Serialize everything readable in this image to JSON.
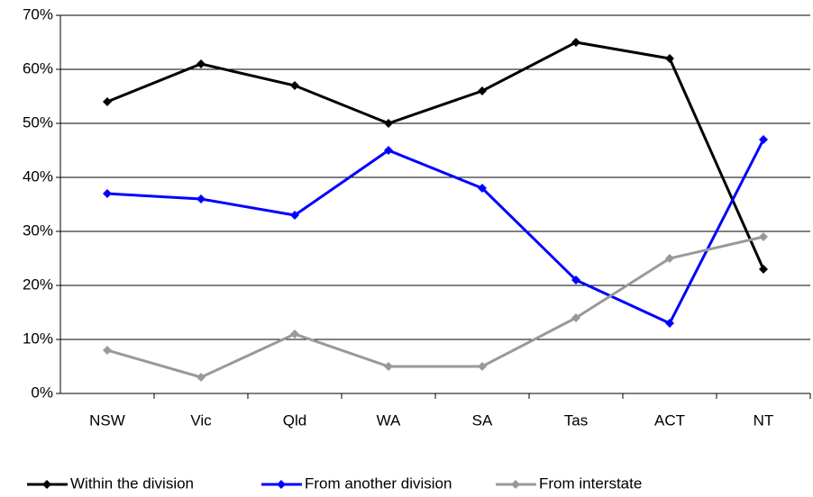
{
  "chart_data": {
    "type": "line",
    "categories": [
      "NSW",
      "Vic",
      "Qld",
      "WA",
      "SA",
      "Tas",
      "ACT",
      "NT"
    ],
    "series": [
      {
        "name": "Within the division",
        "color": "#000000",
        "values": [
          54,
          61,
          57,
          50,
          56,
          65,
          62,
          23
        ]
      },
      {
        "name": "From another division",
        "color": "#0000ff",
        "values": [
          37,
          36,
          33,
          45,
          38,
          21,
          13,
          47
        ]
      },
      {
        "name": "From interstate",
        "color": "#999999",
        "values": [
          8,
          3,
          11,
          5,
          5,
          14,
          25,
          29
        ]
      }
    ],
    "ylim": [
      0,
      70
    ],
    "yticks": [
      {
        "value": 0,
        "label": "0%"
      },
      {
        "value": 10,
        "label": "10%"
      },
      {
        "value": 20,
        "label": "20%"
      },
      {
        "value": 30,
        "label": "30%"
      },
      {
        "value": 40,
        "label": "40%"
      },
      {
        "value": 50,
        "label": "50%"
      },
      {
        "value": 60,
        "label": "60%"
      },
      {
        "value": 70,
        "label": "70%"
      }
    ],
    "grid": true
  }
}
